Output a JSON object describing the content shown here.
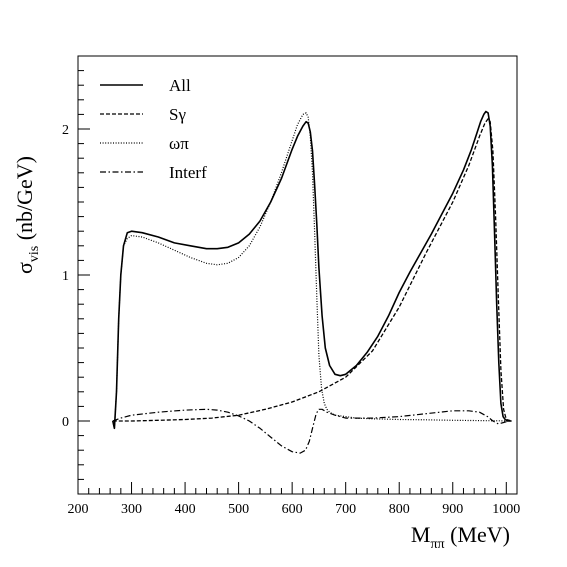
{
  "chart_data": {
    "type": "line",
    "title": "",
    "xlabel": {
      "main": "M",
      "sub": "ππ",
      "unit": " (MeV)"
    },
    "ylabel": {
      "main": "σ",
      "sub": "vis",
      "unit": " (nb/GeV)"
    },
    "xlim": [
      200,
      1020
    ],
    "ylim": [
      -0.5,
      2.5
    ],
    "x_ticks": [
      200,
      300,
      400,
      500,
      600,
      700,
      800,
      900,
      1000
    ],
    "x_tick_labels": [
      "200",
      "300",
      "400",
      "500",
      "600",
      "700",
      "800",
      "900",
      "1000"
    ],
    "y_ticks": [
      0,
      1,
      2
    ],
    "y_tick_labels": [
      "0",
      "1",
      "2"
    ],
    "grid": false,
    "legend_position": "top-left",
    "series": [
      {
        "name": "All",
        "style": "solid",
        "x": [
          265,
          268,
          272,
          276,
          280,
          285,
          292,
          300,
          320,
          350,
          380,
          410,
          440,
          460,
          480,
          500,
          520,
          540,
          560,
          580,
          600,
          610,
          620,
          626,
          630,
          634,
          638,
          642,
          646,
          650,
          656,
          662,
          670,
          680,
          690,
          700,
          720,
          740,
          760,
          780,
          800,
          820,
          840,
          860,
          880,
          900,
          920,
          935,
          945,
          952,
          958,
          962,
          966,
          970,
          974,
          978,
          982,
          986,
          990,
          994,
          998,
          1002,
          1006,
          1010
        ],
        "y": [
          0,
          -0.05,
          0.2,
          0.7,
          1.0,
          1.2,
          1.29,
          1.3,
          1.29,
          1.26,
          1.22,
          1.2,
          1.18,
          1.18,
          1.19,
          1.22,
          1.28,
          1.37,
          1.5,
          1.66,
          1.86,
          1.95,
          2.02,
          2.05,
          2.04,
          1.98,
          1.85,
          1.62,
          1.35,
          1.05,
          0.72,
          0.5,
          0.38,
          0.32,
          0.31,
          0.32,
          0.38,
          0.47,
          0.58,
          0.72,
          0.88,
          1.02,
          1.15,
          1.28,
          1.42,
          1.56,
          1.72,
          1.86,
          1.97,
          2.05,
          2.1,
          2.12,
          2.11,
          2.02,
          1.75,
          1.3,
          0.8,
          0.4,
          0.12,
          0.03,
          0.01,
          0.0,
          0.0,
          0.0
        ]
      },
      {
        "name": "Sγ",
        "style": "dashed",
        "x": [
          265,
          300,
          350,
          400,
          450,
          500,
          550,
          600,
          650,
          700,
          750,
          800,
          850,
          900,
          930,
          950,
          960,
          966,
          970,
          975,
          980,
          985,
          990,
          995,
          1000,
          1010
        ],
        "y": [
          0,
          0,
          0.005,
          0.01,
          0.02,
          0.04,
          0.08,
          0.13,
          0.2,
          0.3,
          0.48,
          0.78,
          1.15,
          1.5,
          1.75,
          1.95,
          2.04,
          2.07,
          2.05,
          1.85,
          1.4,
          0.85,
          0.35,
          0.08,
          0.01,
          0.0
        ]
      },
      {
        "name": "ωπ",
        "style": "dotted",
        "x": [
          265,
          268,
          272,
          276,
          280,
          285,
          292,
          300,
          320,
          350,
          380,
          410,
          440,
          460,
          480,
          500,
          520,
          540,
          560,
          580,
          600,
          610,
          620,
          626,
          630,
          634,
          638,
          642,
          646,
          650,
          655,
          660,
          665,
          670,
          680,
          700,
          720,
          750,
          800,
          850,
          900,
          950,
          1000,
          1010
        ],
        "y": [
          0,
          -0.05,
          0.2,
          0.7,
          1.0,
          1.2,
          1.25,
          1.27,
          1.26,
          1.22,
          1.17,
          1.12,
          1.08,
          1.07,
          1.08,
          1.12,
          1.2,
          1.33,
          1.5,
          1.7,
          1.92,
          2.03,
          2.1,
          2.11,
          2.08,
          1.95,
          1.7,
          1.3,
          0.85,
          0.45,
          0.22,
          0.12,
          0.08,
          0.06,
          0.04,
          0.03,
          0.02,
          0.015,
          0.01,
          0.008,
          0.005,
          0.003,
          0.001,
          0.0
        ]
      },
      {
        "name": "Interf",
        "style": "dashdot",
        "x": [
          265,
          280,
          300,
          350,
          400,
          440,
          460,
          480,
          500,
          520,
          540,
          560,
          580,
          600,
          615,
          625,
          632,
          638,
          645,
          650,
          656,
          665,
          680,
          700,
          750,
          800,
          850,
          900,
          930,
          950,
          965,
          975,
          985,
          995,
          1005
        ],
        "y": [
          0,
          0.02,
          0.04,
          0.06,
          0.075,
          0.08,
          0.075,
          0.06,
          0.035,
          0.0,
          -0.05,
          -0.11,
          -0.17,
          -0.21,
          -0.22,
          -0.2,
          -0.14,
          -0.05,
          0.05,
          0.08,
          0.08,
          0.06,
          0.04,
          0.02,
          0.02,
          0.03,
          0.05,
          0.07,
          0.07,
          0.06,
          0.03,
          0.0,
          -0.02,
          -0.01,
          0.0
        ]
      }
    ]
  }
}
